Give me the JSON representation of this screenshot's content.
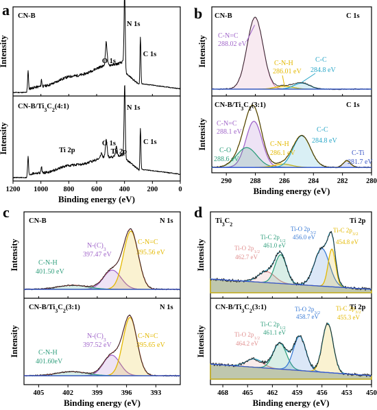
{
  "colors": {
    "raw": "#222222",
    "envelope": "#d98ab4",
    "cnc": "#e3b800",
    "nc3": "#a065c9",
    "cnh": "#2f9e7c",
    "cc": "#2aa7c8",
    "cti": "#3a56c6",
    "tio": "#e08f8f",
    "tic": "#2f9e7c",
    "tio_b": "#3a7bd5",
    "background": "#3355dd"
  },
  "chart_data": [
    {
      "panel": "a",
      "type": "line",
      "xlabel": "Binding energy (eV)",
      "ylabel": "Intensity",
      "xlim": [
        1200,
        0
      ],
      "xticks": [
        1200,
        1000,
        800,
        600,
        400,
        200,
        0
      ],
      "subplots": [
        {
          "sample": "CN-B",
          "peaks": [
            {
              "label": "N 1s",
              "x": 399
            },
            {
              "label": "O 1s",
              "x": 532
            },
            {
              "label": "C 1s",
              "x": 287
            }
          ]
        },
        {
          "sample": "CN-B/Ti3C2(4:1)",
          "peaks": [
            {
              "label": "N 1s",
              "x": 399
            },
            {
              "label": "O 1s",
              "x": 532
            },
            {
              "label": "Ti 2p",
              "x": 459
            },
            {
              "label": "Ti 2p",
              "x": 565
            },
            {
              "label": "C 1s",
              "x": 285
            }
          ]
        }
      ]
    },
    {
      "panel": "b",
      "type": "line",
      "xlabel": "Binding energy (eV)",
      "ylabel": "Intensity",
      "xlim": [
        291,
        280
      ],
      "xticks": [
        290,
        288,
        286,
        284,
        282,
        280
      ],
      "subplots": [
        {
          "sample": "CN-B",
          "region": "C 1s",
          "peaks": [
            {
              "label": "C-N=C",
              "value": "288.02 eV",
              "x": 288.02
            },
            {
              "label": "C-N-H",
              "value": "286.01 eV",
              "x": 286.01
            },
            {
              "label": "C-C",
              "value": "284.8 eV",
              "x": 284.8
            }
          ]
        },
        {
          "sample": "CN-B/Ti3C2(3:1)",
          "region": "C 1s",
          "peaks": [
            {
              "label": "C-N=C",
              "value": "288.1 eV",
              "x": 288.1
            },
            {
              "label": "C-O",
              "value": "288.6 eV",
              "x": 288.6
            },
            {
              "label": "C-N-H",
              "value": "286.1 eV",
              "x": 286.1
            },
            {
              "label": "C-C",
              "value": "284.8 eV",
              "x": 284.8
            },
            {
              "label": "C-Ti",
              "value": "281.7 eV",
              "x": 281.7
            }
          ]
        }
      ]
    },
    {
      "panel": "c",
      "type": "line",
      "xlabel": "Binding energy (eV)",
      "ylabel": "Intensity",
      "xlim": [
        406.5,
        390.5
      ],
      "xticks": [
        405,
        402,
        399,
        396,
        393
      ],
      "subplots": [
        {
          "sample": "CN-B",
          "region": "N 1s",
          "peaks": [
            {
              "label": "N-(C)3",
              "value": "397.47 eV",
              "x": 397.47
            },
            {
              "label": "C-N=C",
              "value": "395.56 eV",
              "x": 395.56
            },
            {
              "label": "C-N-H",
              "value": "401.50 eV",
              "x": 401.5
            }
          ]
        },
        {
          "sample": "CN-B/Ti3C2(3:1)",
          "region": "N 1s",
          "peaks": [
            {
              "label": "N-(C)3",
              "value": "397.52 eV",
              "x": 397.52
            },
            {
              "label": "C-N=C",
              "value": "395.65 eV",
              "x": 395.65
            },
            {
              "label": "C-N-H",
              "value": "401.60eV",
              "x": 401.6
            }
          ]
        }
      ]
    },
    {
      "panel": "d",
      "type": "line",
      "xlabel": "Binding energy (eV)",
      "ylabel": "Intensity",
      "xlim": [
        469.5,
        450
      ],
      "xticks": [
        468,
        465,
        462,
        459,
        456,
        453,
        450
      ],
      "subplots": [
        {
          "sample": "Ti3C2",
          "region": "Ti 2p",
          "peaks": [
            {
              "label": "Ti-O 2p1/2",
              "value": "462.7 eV",
              "x": 462.7
            },
            {
              "label": "Ti-C 2p1/2",
              "value": "461.0 eV",
              "x": 461.0
            },
            {
              "label": "Ti-O 2p3/2",
              "value": "456.0 eV",
              "x": 456.0
            },
            {
              "label": "Ti-C 2p3/2",
              "value": "454.8 eV",
              "x": 454.8
            }
          ]
        },
        {
          "sample": "CN-B/Ti3C2(3:1)",
          "region": "Ti 2p",
          "peaks": [
            {
              "label": "Ti-O 2p1/2",
              "value": "464.2 eV",
              "x": 464.2
            },
            {
              "label": "Ti-C 2p1/2",
              "value": "461.1 eV",
              "x": 461.1
            },
            {
              "label": "Ti-O 2p3/2",
              "value": "458.7 eV",
              "x": 458.7
            },
            {
              "label": "Ti-C 2p3/2",
              "value": "455.3 eV",
              "x": 455.3
            }
          ]
        }
      ]
    }
  ]
}
